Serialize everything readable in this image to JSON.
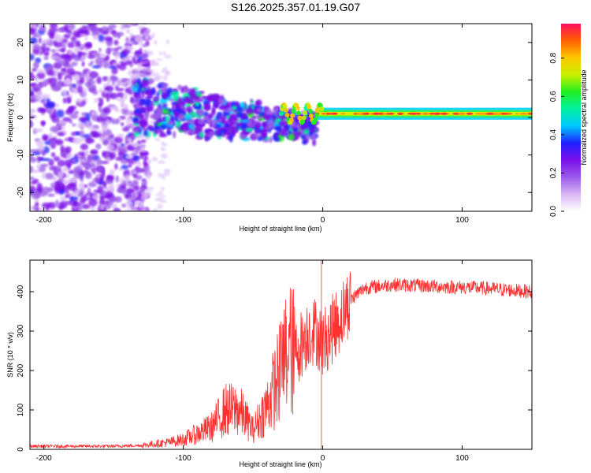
{
  "title": "S126.2025.357.01.19.G07",
  "chart_data": [
    {
      "type": "heatmap",
      "title": "S126.2025.357.01.19.G07",
      "xlabel": "Height of straight line (km)",
      "ylabel": "Frequency (Hz)",
      "xlim": [
        -210,
        150
      ],
      "ylim": [
        -25,
        25
      ],
      "xticks": [
        -200,
        -100,
        0,
        100
      ],
      "yticks": [
        20,
        10,
        0,
        -10,
        -20
      ],
      "colorbar": {
        "label": "Normalized spectral amplitude",
        "range": [
          0,
          1
        ],
        "ticks": [
          "0.0",
          "0.2",
          "0.4",
          "0.6",
          "0.8"
        ],
        "colors": [
          "#ffffff",
          "#d9b8f5",
          "#9a5ae8",
          "#7a10e8",
          "#2020ff",
          "#00c8ff",
          "#00f0a0",
          "#20f020",
          "#c8f000",
          "#ffc800",
          "#ff6000",
          "#ff1060"
        ]
      },
      "features": {
        "noise_region_km": [
          -210,
          -135
        ],
        "transition_region_km": [
          -135,
          -5
        ],
        "ridge_frequency_hz": 1,
        "ridge_region_km": [
          -5,
          150
        ]
      }
    },
    {
      "type": "line",
      "xlabel": "Height of straight line (km)",
      "ylabel": "SNR (10 * v/v)",
      "xlim": [
        -210,
        150
      ],
      "ylim": [
        0,
        480
      ],
      "xticks": [
        -200,
        -100,
        0,
        100
      ],
      "yticks": [
        400,
        300,
        200,
        100,
        0
      ],
      "series": [
        {
          "name": "SNR",
          "color": "#ff3030",
          "x": [
            -210,
            -180,
            -150,
            -130,
            -110,
            -100,
            -90,
            -80,
            -70,
            -60,
            -50,
            -40,
            -30,
            -25,
            -20,
            -15,
            -10,
            -5,
            0,
            10,
            20,
            30,
            50,
            70,
            90,
            110,
            130,
            150
          ],
          "y": [
            8,
            8,
            8,
            10,
            18,
            25,
            40,
            55,
            100,
            100,
            50,
            110,
            200,
            260,
            240,
            270,
            300,
            300,
            270,
            320,
            380,
            410,
            418,
            415,
            412,
            410,
            405,
            400
          ]
        }
      ]
    }
  ]
}
